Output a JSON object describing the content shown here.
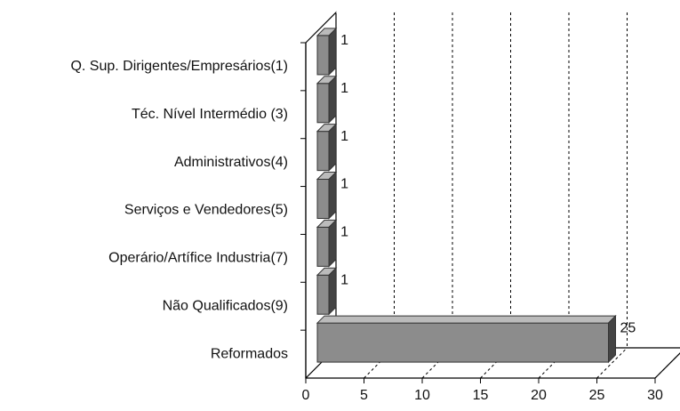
{
  "chart_data": {
    "type": "bar3d_horizontal",
    "categories": [
      "Q. Sup. Dirigentes/Empresários(1)",
      "Téc. Nível Intermédio (3)",
      "Administrativos(4)",
      "Serviços e Vendedores(5)",
      "Operário/Artífice Industria(7)",
      "Não  Qualificados(9)",
      "Reformados"
    ],
    "values": [
      1,
      1,
      1,
      1,
      1,
      1,
      25
    ],
    "color": "#8c8c8c",
    "xlim": [
      0,
      30
    ],
    "xticks": [
      0,
      5,
      10,
      15,
      20,
      25,
      30
    ],
    "grid": true
  }
}
